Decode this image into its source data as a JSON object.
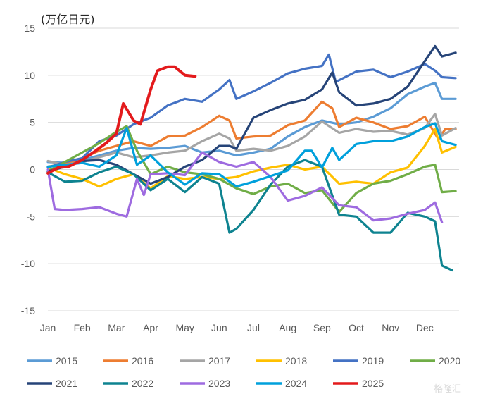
{
  "chart_data": {
    "type": "line",
    "title": "",
    "unit_label": "(万亿日元)",
    "xlabel": "",
    "ylabel": "",
    "ylim": [
      -15,
      15
    ],
    "yticks": [
      15,
      10,
      5,
      0,
      -5,
      -10,
      -15
    ],
    "x_domain": [
      0,
      12
    ],
    "xticks": [
      {
        "label": "Jan",
        "x": 0
      },
      {
        "label": "Feb",
        "x": 1
      },
      {
        "label": "Mar",
        "x": 2
      },
      {
        "label": "Apr",
        "x": 3
      },
      {
        "label": "May",
        "x": 4
      },
      {
        "label": "Jun",
        "x": 5
      },
      {
        "label": "Jul",
        "x": 6
      },
      {
        "label": "Aug",
        "x": 7
      },
      {
        "label": "Sep",
        "x": 8
      },
      {
        "label": "Oct",
        "x": 9
      },
      {
        "label": "Nov",
        "x": 10
      },
      {
        "label": "Dec",
        "x": 11
      }
    ],
    "grid": "horizontal",
    "legend_position": "bottom",
    "watermark": "格隆汇",
    "series": [
      {
        "name": "2015",
        "color": "#5B9BD5",
        "points": [
          [
            0,
            0.8
          ],
          [
            0.5,
            0.7
          ],
          [
            1,
            1.0
          ],
          [
            1.5,
            1.5
          ],
          [
            2,
            2.0
          ],
          [
            2.5,
            2.3
          ],
          [
            3,
            2.2
          ],
          [
            3.5,
            2.3
          ],
          [
            4,
            2.5
          ],
          [
            4.5,
            1.8
          ],
          [
            5,
            2.0
          ],
          [
            5.5,
            1.5
          ],
          [
            6,
            1.8
          ],
          [
            6.5,
            2.2
          ],
          [
            7,
            3.5
          ],
          [
            7.5,
            4.5
          ],
          [
            8,
            5.2
          ],
          [
            8.5,
            4.8
          ],
          [
            9,
            5.0
          ],
          [
            9.5,
            5.6
          ],
          [
            10,
            6.5
          ],
          [
            10.5,
            8.0
          ],
          [
            11,
            8.8
          ],
          [
            11.3,
            9.2
          ],
          [
            11.5,
            7.5
          ],
          [
            11.9,
            7.5
          ]
        ]
      },
      {
        "name": "2016",
        "color": "#ED7D31",
        "points": [
          [
            0,
            0.3
          ],
          [
            0.5,
            0.6
          ],
          [
            1,
            1.2
          ],
          [
            1.5,
            2.0
          ],
          [
            2,
            2.5
          ],
          [
            2.5,
            3.0
          ],
          [
            3,
            2.5
          ],
          [
            3.5,
            3.5
          ],
          [
            4,
            3.6
          ],
          [
            4.5,
            4.5
          ],
          [
            5,
            5.7
          ],
          [
            5.3,
            5.2
          ],
          [
            5.5,
            3.3
          ],
          [
            6,
            3.5
          ],
          [
            6.5,
            3.6
          ],
          [
            7,
            4.7
          ],
          [
            7.5,
            5.2
          ],
          [
            8,
            7.2
          ],
          [
            8.3,
            6.5
          ],
          [
            8.5,
            4.5
          ],
          [
            9,
            5.5
          ],
          [
            9.5,
            5.0
          ],
          [
            10,
            4.3
          ],
          [
            10.5,
            4.6
          ],
          [
            11,
            5.6
          ],
          [
            11.4,
            3.2
          ],
          [
            11.6,
            4.3
          ],
          [
            11.9,
            4.3
          ]
        ]
      },
      {
        "name": "2017",
        "color": "#A5A5A5",
        "points": [
          [
            0,
            0.9
          ],
          [
            0.5,
            0.5
          ],
          [
            1,
            0.8
          ],
          [
            1.5,
            1.3
          ],
          [
            2,
            1.8
          ],
          [
            2.5,
            1.3
          ],
          [
            3,
            1.5
          ],
          [
            3.5,
            1.8
          ],
          [
            4,
            2.0
          ],
          [
            4.5,
            3.0
          ],
          [
            5,
            3.8
          ],
          [
            5.3,
            3.3
          ],
          [
            5.5,
            2.0
          ],
          [
            6,
            2.2
          ],
          [
            6.5,
            2.0
          ],
          [
            7,
            2.5
          ],
          [
            7.5,
            3.5
          ],
          [
            8,
            5.1
          ],
          [
            8.5,
            3.9
          ],
          [
            9,
            4.3
          ],
          [
            9.5,
            4.0
          ],
          [
            10,
            4.1
          ],
          [
            10.5,
            3.7
          ],
          [
            11,
            4.4
          ],
          [
            11.3,
            5.9
          ],
          [
            11.5,
            3.6
          ],
          [
            11.9,
            4.4
          ]
        ]
      },
      {
        "name": "2018",
        "color": "#FFC000",
        "points": [
          [
            0,
            0.2
          ],
          [
            0.5,
            -0.5
          ],
          [
            1,
            -1.0
          ],
          [
            1.5,
            -1.8
          ],
          [
            2,
            -1.0
          ],
          [
            2.5,
            -0.5
          ],
          [
            3,
            -2.0
          ],
          [
            3.5,
            -0.7
          ],
          [
            4,
            -1.0
          ],
          [
            4.5,
            -0.8
          ],
          [
            5,
            -1.0
          ],
          [
            5.5,
            -0.8
          ],
          [
            6,
            -0.2
          ],
          [
            6.5,
            0.2
          ],
          [
            7,
            0.5
          ],
          [
            7.5,
            0.0
          ],
          [
            8,
            0.3
          ],
          [
            8.5,
            -1.5
          ],
          [
            9,
            -1.3
          ],
          [
            9.5,
            -1.5
          ],
          [
            10,
            -0.3
          ],
          [
            10.5,
            0.2
          ],
          [
            11,
            2.5
          ],
          [
            11.3,
            4.3
          ],
          [
            11.5,
            1.8
          ],
          [
            11.9,
            2.4
          ]
        ]
      },
      {
        "name": "2019",
        "color": "#4472C4",
        "points": [
          [
            0,
            0.2
          ],
          [
            0.5,
            0.8
          ],
          [
            1,
            1.2
          ],
          [
            1.5,
            3.0
          ],
          [
            2,
            3.6
          ],
          [
            2.5,
            4.8
          ],
          [
            3,
            5.5
          ],
          [
            3.5,
            6.8
          ],
          [
            4,
            7.5
          ],
          [
            4.5,
            7.2
          ],
          [
            5,
            8.5
          ],
          [
            5.3,
            9.5
          ],
          [
            5.5,
            7.5
          ],
          [
            6,
            8.3
          ],
          [
            6.5,
            9.2
          ],
          [
            7,
            10.2
          ],
          [
            7.5,
            10.7
          ],
          [
            8,
            11.0
          ],
          [
            8.2,
            12.2
          ],
          [
            8.4,
            9.3
          ],
          [
            9,
            10.4
          ],
          [
            9.5,
            10.6
          ],
          [
            10,
            9.8
          ],
          [
            10.5,
            10.4
          ],
          [
            11,
            11.2
          ],
          [
            11.3,
            10.5
          ],
          [
            11.5,
            9.8
          ],
          [
            11.9,
            9.7
          ]
        ]
      },
      {
        "name": "2020",
        "color": "#70AD47",
        "points": [
          [
            0,
            -0.2
          ],
          [
            0.5,
            0.8
          ],
          [
            1,
            1.8
          ],
          [
            1.5,
            2.8
          ],
          [
            2,
            4.0
          ],
          [
            2.3,
            4.6
          ],
          [
            2.6,
            2.0
          ],
          [
            3,
            -0.5
          ],
          [
            3.5,
            0.3
          ],
          [
            4,
            -0.3
          ],
          [
            4.5,
            -0.5
          ],
          [
            5,
            -1.0
          ],
          [
            5.5,
            -2.0
          ],
          [
            6,
            -2.6
          ],
          [
            6.5,
            -1.8
          ],
          [
            7,
            -1.5
          ],
          [
            7.5,
            -2.5
          ],
          [
            8,
            -2.2
          ],
          [
            8.5,
            -4.5
          ],
          [
            9,
            -2.5
          ],
          [
            9.5,
            -1.5
          ],
          [
            10,
            -1.2
          ],
          [
            10.5,
            -0.5
          ],
          [
            11,
            0.3
          ],
          [
            11.3,
            0.5
          ],
          [
            11.5,
            -2.4
          ],
          [
            11.9,
            -2.3
          ]
        ]
      },
      {
        "name": "2021",
        "color": "#264478",
        "points": [
          [
            0,
            -0.2
          ],
          [
            0.5,
            0.3
          ],
          [
            1,
            0.9
          ],
          [
            1.5,
            1.0
          ],
          [
            2,
            0.5
          ],
          [
            2.5,
            -0.5
          ],
          [
            3,
            -1.5
          ],
          [
            3.5,
            -0.8
          ],
          [
            4,
            0.3
          ],
          [
            4.5,
            1.0
          ],
          [
            5,
            2.5
          ],
          [
            5.3,
            2.5
          ],
          [
            5.5,
            2.2
          ],
          [
            6,
            5.5
          ],
          [
            6.5,
            6.3
          ],
          [
            7,
            7.0
          ],
          [
            7.5,
            7.4
          ],
          [
            8,
            8.5
          ],
          [
            8.3,
            10.3
          ],
          [
            8.5,
            8.2
          ],
          [
            9,
            6.8
          ],
          [
            9.5,
            7.0
          ],
          [
            10,
            7.5
          ],
          [
            10.5,
            8.8
          ],
          [
            11,
            11.5
          ],
          [
            11.3,
            13.1
          ],
          [
            11.5,
            12.0
          ],
          [
            11.9,
            12.4
          ]
        ]
      },
      {
        "name": "2022",
        "color": "#0E8390",
        "points": [
          [
            0,
            -0.3
          ],
          [
            0.5,
            -1.3
          ],
          [
            1,
            -1.2
          ],
          [
            1.5,
            -0.3
          ],
          [
            2,
            0.3
          ],
          [
            2.5,
            -0.5
          ],
          [
            3,
            -2.2
          ],
          [
            3.5,
            -1.0
          ],
          [
            4,
            -2.4
          ],
          [
            4.5,
            -0.8
          ],
          [
            5,
            -1.5
          ],
          [
            5.3,
            -6.7
          ],
          [
            5.5,
            -6.3
          ],
          [
            6,
            -4.3
          ],
          [
            6.5,
            -1.6
          ],
          [
            7,
            0.3
          ],
          [
            7.5,
            1.0
          ],
          [
            8,
            0.3
          ],
          [
            8.5,
            -4.8
          ],
          [
            9,
            -5.0
          ],
          [
            9.5,
            -6.7
          ],
          [
            10,
            -6.7
          ],
          [
            10.5,
            -4.6
          ],
          [
            11,
            -5.0
          ],
          [
            11.3,
            -5.5
          ],
          [
            11.5,
            -10.2
          ],
          [
            11.8,
            -10.7
          ]
        ]
      },
      {
        "name": "2023",
        "color": "#9E6BE0",
        "points": [
          [
            0,
            0.0
          ],
          [
            0.2,
            -4.2
          ],
          [
            0.5,
            -4.3
          ],
          [
            1,
            -4.2
          ],
          [
            1.5,
            -4.0
          ],
          [
            2,
            -4.7
          ],
          [
            2.3,
            -5.0
          ],
          [
            2.6,
            -1.0
          ],
          [
            2.8,
            -2.7
          ],
          [
            3,
            -0.5
          ],
          [
            3.5,
            -0.4
          ],
          [
            4,
            -0.6
          ],
          [
            4.5,
            1.8
          ],
          [
            5,
            0.8
          ],
          [
            5.5,
            0.3
          ],
          [
            6,
            0.8
          ],
          [
            6.5,
            -0.8
          ],
          [
            7,
            -3.3
          ],
          [
            7.5,
            -2.8
          ],
          [
            8,
            -1.9
          ],
          [
            8.5,
            -3.8
          ],
          [
            9,
            -4.0
          ],
          [
            9.5,
            -5.4
          ],
          [
            10,
            -5.2
          ],
          [
            10.5,
            -4.7
          ],
          [
            11,
            -4.3
          ],
          [
            11.3,
            -3.5
          ],
          [
            11.5,
            -5.6
          ]
        ]
      },
      {
        "name": "2024",
        "color": "#00A0DC",
        "points": [
          [
            0,
            0.3
          ],
          [
            0.5,
            0.5
          ],
          [
            1,
            0.7
          ],
          [
            1.5,
            0.3
          ],
          [
            2,
            1.5
          ],
          [
            2.3,
            4.4
          ],
          [
            2.6,
            0.5
          ],
          [
            3,
            1.5
          ],
          [
            3.5,
            -0.3
          ],
          [
            4,
            -1.6
          ],
          [
            4.5,
            -0.4
          ],
          [
            5,
            -0.5
          ],
          [
            5.5,
            -1.8
          ],
          [
            6,
            -1.3
          ],
          [
            6.5,
            -0.7
          ],
          [
            7,
            -0.1
          ],
          [
            7.5,
            2.0
          ],
          [
            7.7,
            2.0
          ],
          [
            8,
            0.2
          ],
          [
            8.3,
            2.3
          ],
          [
            8.5,
            1.0
          ],
          [
            9,
            2.7
          ],
          [
            9.5,
            3.0
          ],
          [
            10,
            3.0
          ],
          [
            10.5,
            3.5
          ],
          [
            11,
            4.5
          ],
          [
            11.3,
            4.9
          ],
          [
            11.5,
            3.0
          ],
          [
            11.9,
            2.6
          ]
        ]
      },
      {
        "name": "2025",
        "color": "#E31A1C",
        "points": [
          [
            0,
            -0.4
          ],
          [
            0.3,
            0.2
          ],
          [
            0.6,
            0.3
          ],
          [
            1,
            1.0
          ],
          [
            1.4,
            2.0
          ],
          [
            1.7,
            2.8
          ],
          [
            2,
            3.8
          ],
          [
            2.2,
            7.0
          ],
          [
            2.5,
            5.2
          ],
          [
            2.7,
            4.8
          ],
          [
            3,
            8.5
          ],
          [
            3.2,
            10.5
          ],
          [
            3.5,
            10.9
          ],
          [
            3.7,
            10.9
          ],
          [
            4,
            10.0
          ],
          [
            4.3,
            9.9
          ]
        ]
      }
    ]
  }
}
